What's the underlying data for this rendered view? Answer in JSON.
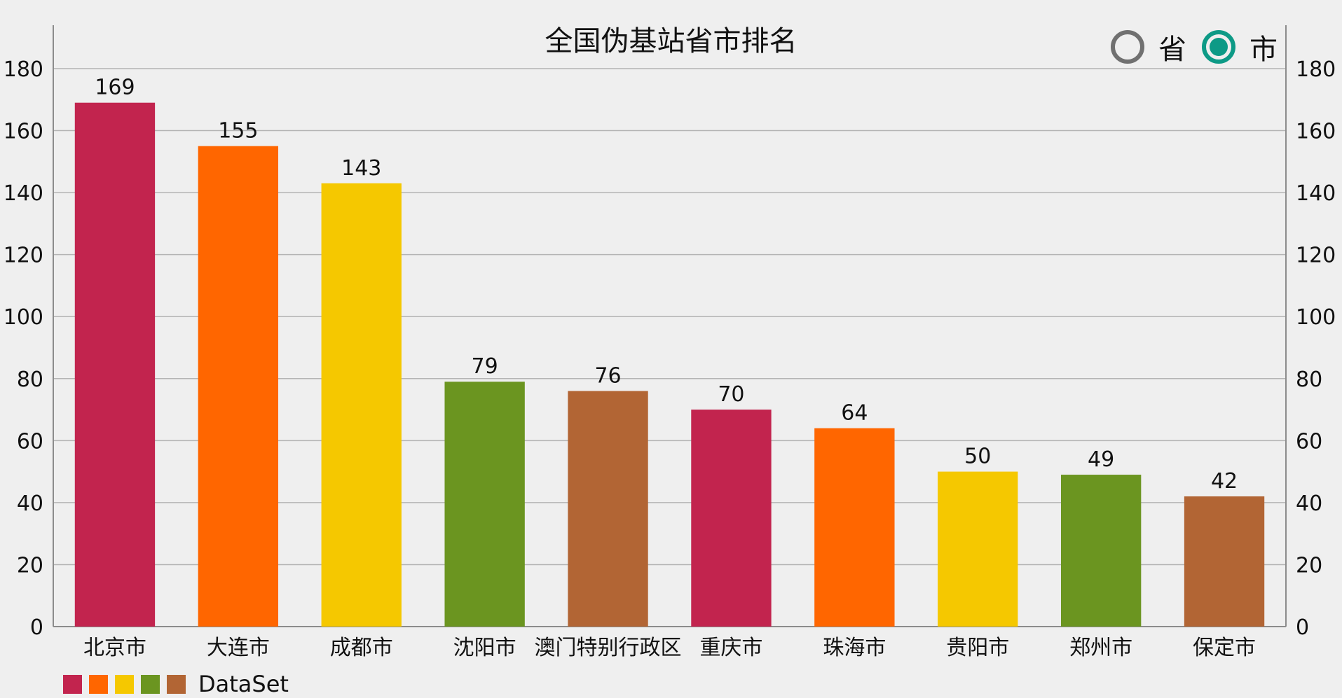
{
  "chart_data": {
    "type": "bar",
    "title": "全国伪基站省市排名",
    "categories": [
      "北京市",
      "大连市",
      "成都市",
      "沈阳市",
      "澳门特别行政区",
      "重庆市",
      "珠海市",
      "贵阳市",
      "郑州市",
      "保定市"
    ],
    "series": [
      {
        "name": "DataSet",
        "values": [
          169,
          155,
          143,
          79,
          76,
          70,
          64,
          50,
          49,
          42
        ]
      }
    ],
    "colors": [
      "#c2244e",
      "#ff6600",
      "#f5c800",
      "#6b9520",
      "#b26534"
    ],
    "ylim": [
      0,
      194
    ],
    "yticks": [
      0,
      20,
      40,
      60,
      80,
      100,
      120,
      140,
      160,
      180
    ],
    "secondary_axis": true,
    "grid": true,
    "show_data_labels": true,
    "legend": "bottom-left"
  },
  "toggle": {
    "options": [
      {
        "label": "省",
        "checked": false
      },
      {
        "label": "市",
        "checked": true
      }
    ]
  }
}
